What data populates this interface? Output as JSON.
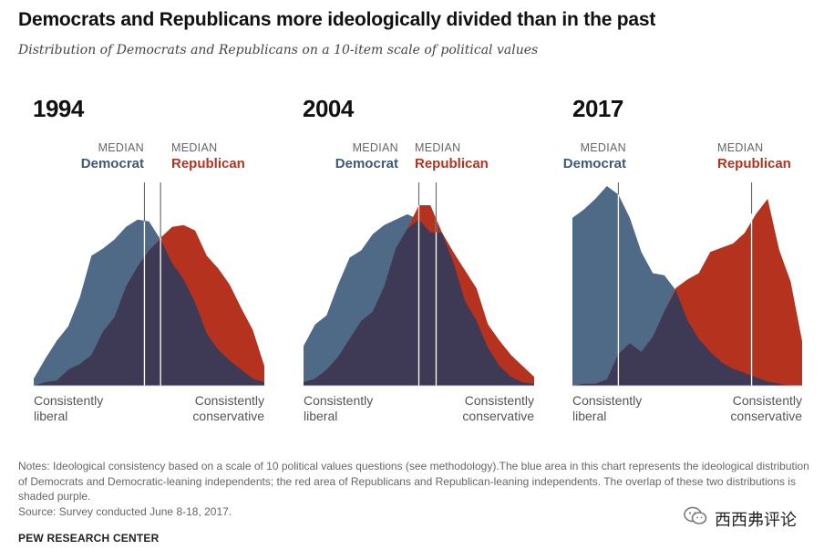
{
  "title": "Democrats and Republicans more ideologically divided than in the past",
  "subtitle": "Distribution of Democrats and Republicans on a 10-item scale of political values",
  "median_word": "MEDIAN",
  "democrat_word": "Democrat",
  "republican_word": "Republican",
  "axis": {
    "left": "Consistently liberal",
    "left_line1": "Consistently",
    "left_line2": "liberal",
    "right": "Consistently conservative",
    "right_line1": "Consistently",
    "right_line2": "conservative"
  },
  "colors": {
    "democrat": "#4e6a86",
    "republican": "#b5331e",
    "overlap": "#3e3a56"
  },
  "notes": "Notes: Ideological consistency based on a scale of 10 political values questions (see methodology).The blue area in this chart represents the ideological distribution of Democrats and Democratic-leaning independents; the red area of Republicans and Republican-leaning independents. The overlap of these two distributions is shaded purple.",
  "source": "Source: Survey conducted June 8-18, 2017.",
  "brand": "PEW RESEARCH CENTER",
  "watermark": {
    "icon": "wechat-icon",
    "text": "西西弗评论"
  },
  "chart_data": [
    {
      "type": "area",
      "title": "1994",
      "x": [
        -10,
        -9,
        -8,
        -7,
        -6,
        -5,
        -4,
        -3,
        -2,
        -1,
        0,
        1,
        2,
        3,
        4,
        5,
        6,
        7,
        8,
        9,
        10
      ],
      "series": [
        {
          "name": "Democrat",
          "values": [
            0.04,
            0.15,
            0.25,
            0.33,
            0.49,
            0.72,
            0.76,
            0.81,
            0.88,
            0.92,
            0.91,
            0.81,
            0.68,
            0.59,
            0.46,
            0.29,
            0.2,
            0.14,
            0.09,
            0.04,
            0.02
          ]
        },
        {
          "name": "Republican",
          "values": [
            0.0,
            0.02,
            0.03,
            0.09,
            0.12,
            0.17,
            0.3,
            0.38,
            0.55,
            0.66,
            0.75,
            0.82,
            0.88,
            0.89,
            0.86,
            0.72,
            0.65,
            0.56,
            0.43,
            0.31,
            0.11
          ]
        }
      ],
      "median_democrat": -0.4,
      "median_republican": 1.0,
      "ylim": [
        0,
        1
      ]
    },
    {
      "type": "area",
      "title": "2004",
      "x": [
        -10,
        -9,
        -8,
        -7,
        -6,
        -5,
        -4,
        -3,
        -2,
        -1,
        0,
        1,
        2,
        3,
        4,
        5,
        6,
        7,
        8,
        9,
        10
      ],
      "series": [
        {
          "name": "Democrat",
          "values": [
            0.22,
            0.34,
            0.39,
            0.56,
            0.71,
            0.75,
            0.84,
            0.89,
            0.92,
            0.95,
            0.92,
            0.85,
            0.85,
            0.68,
            0.47,
            0.36,
            0.21,
            0.11,
            0.05,
            0.02,
            0.01
          ]
        },
        {
          "name": "Republican",
          "values": [
            0.02,
            0.04,
            0.09,
            0.16,
            0.26,
            0.36,
            0.41,
            0.55,
            0.76,
            0.87,
            1.0,
            1.0,
            0.85,
            0.74,
            0.64,
            0.54,
            0.34,
            0.25,
            0.17,
            0.11,
            0.05
          ]
        }
      ],
      "median_democrat": 0.0,
      "median_republican": 1.5,
      "ylim": [
        0,
        1
      ]
    },
    {
      "type": "area",
      "title": "2017",
      "x": [
        -10,
        -9,
        -8,
        -7,
        -6,
        -5,
        -4,
        -3,
        -2,
        -1,
        0,
        1,
        2,
        3,
        4,
        5,
        6,
        7,
        8,
        9,
        10
      ],
      "series": [
        {
          "name": "Democrat",
          "values": [
            0.79,
            0.83,
            0.88,
            0.94,
            0.9,
            0.79,
            0.63,
            0.53,
            0.52,
            0.45,
            0.31,
            0.22,
            0.16,
            0.11,
            0.08,
            0.06,
            0.04,
            0.02,
            0.01,
            0.0,
            0.0
          ]
        },
        {
          "name": "Republican",
          "values": [
            0.0,
            0.01,
            0.01,
            0.03,
            0.15,
            0.2,
            0.16,
            0.23,
            0.35,
            0.46,
            0.5,
            0.53,
            0.63,
            0.65,
            0.67,
            0.72,
            0.81,
            0.88,
            0.64,
            0.49,
            0.21
          ]
        }
      ],
      "median_democrat": -6.0,
      "median_republican": 5.6,
      "ylim": [
        0,
        1
      ]
    }
  ]
}
